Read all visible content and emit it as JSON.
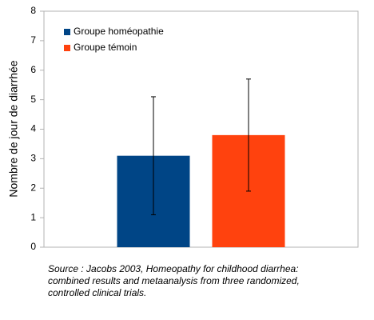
{
  "chart_data": {
    "type": "bar",
    "categories": [
      null
    ],
    "series": [
      {
        "name": "Groupe homéopathie",
        "color": "#004586",
        "values": [
          3.1
        ],
        "errors": [
          2.0
        ]
      },
      {
        "name": "Groupe témoin",
        "color": "#ff420e",
        "values": [
          3.8
        ],
        "errors": [
          1.9
        ]
      }
    ],
    "ylabel": "Nombre de jour de diarrhée",
    "ylim": [
      0,
      8
    ],
    "yticks": [
      0,
      1,
      2,
      3,
      4,
      5,
      6,
      7,
      8
    ],
    "grid": false,
    "legend": "upper-left",
    "caption": [
      "Source : Jacobs 2003, Homeopathy for childhood diarrhea:",
      "combined results and metaanalysis from three randomized,",
      "controlled clinical trials."
    ]
  }
}
